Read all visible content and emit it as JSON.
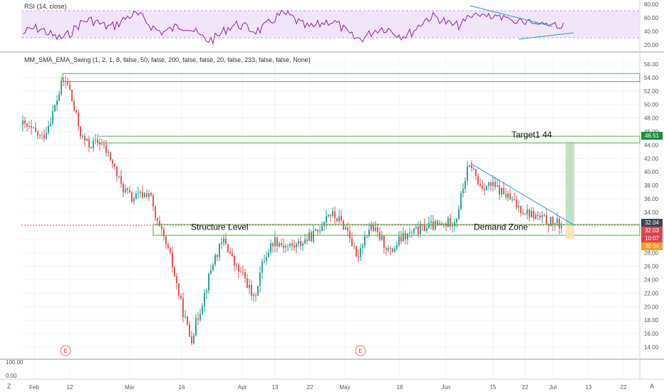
{
  "rsi_panel": {
    "label": "RSI (14, close)",
    "axis_ticks": [
      "80.00",
      "60.00",
      "40.00",
      "20.00"
    ]
  },
  "indicator": {
    "label": "MM_SMA_EMA_Swing (1, 2, 1, 8, false, 50, false, 200, false, false, 20, false, 233, false, false, None)"
  },
  "price_axis": {
    "ticks": [
      "56.00",
      "54.00",
      "52.00",
      "50.00",
      "48.00",
      "46.00",
      "44.00",
      "42.00",
      "40.00",
      "38.00",
      "36.00",
      "34.00",
      "32.00",
      "30.00",
      "28.00",
      "26.00",
      "24.00",
      "22.00",
      "20.00",
      "18.00",
      "16.00",
      "14.00"
    ],
    "tags": [
      {
        "text": "46.51",
        "color": "#1e8e3e"
      },
      {
        "text": "32.04",
        "color": "#3d4450"
      },
      {
        "text": "32.03",
        "color": "#e0424f"
      },
      {
        "text": "10:07",
        "color": "#e0424f"
      },
      {
        "text": "30.04",
        "color": "#f59c1a"
      }
    ]
  },
  "bottom_panel": {
    "ticks": [
      "100.00",
      "0.00"
    ]
  },
  "time_axis": {
    "labels": [
      "Feb",
      "12",
      "Mar",
      "16",
      "Apr",
      "13",
      "22",
      "May",
      "18",
      "Jun",
      "15",
      "22",
      "Jul",
      "13",
      "22"
    ]
  },
  "annotations": {
    "target": "Target1 44",
    "structure": "Structure Level",
    "demand": "Demand Zone",
    "earnings_marker": "E"
  },
  "corners": {
    "left": "Z",
    "right": "A"
  },
  "colors": {
    "rsi_line": "#8e24aa",
    "rsi_band": "#ede0f7",
    "candle_up": "#26a69a",
    "candle_down": "#ef5350",
    "zone_line": "#4caf50",
    "trend_line": "#2196f3",
    "target_box": "#a5d6a7",
    "stop_box": "#ffe0b2"
  },
  "chart_data": {
    "type": "candlestick",
    "x_label": "",
    "y_label": "",
    "ylim": [
      12,
      57
    ],
    "x": [
      "Feb",
      "12",
      "Mar",
      "16",
      "Apr",
      "13",
      "22",
      "May",
      "18",
      "Jun",
      "15",
      "22",
      "Jul"
    ],
    "close_approx": [
      47,
      44,
      36,
      16,
      28,
      25,
      31,
      28,
      30,
      40,
      37,
      34,
      32
    ],
    "levels": {
      "top_zone": [
        53.5,
        54.5
      ],
      "target": 44.5,
      "structure": 31.6,
      "demand": [
        30.5,
        32.2
      ]
    }
  }
}
